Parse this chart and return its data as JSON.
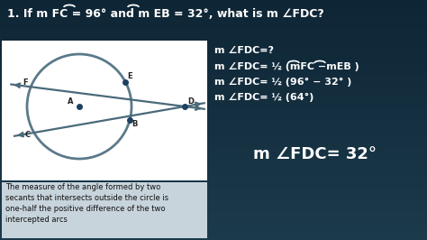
{
  "bg_top": "#1b3a4b",
  "bg_bottom": "#0e2535",
  "white_panel": "#ffffff",
  "grey_panel": "#c8d4dc",
  "circle_color": "#5a7a8a",
  "line_color": "#4a6a7a",
  "dot_color": "#1e4060",
  "text_white": "#ffffff",
  "text_dark": "#111111",
  "title": "1. If m FC = 96° and m EB = 32°, what is m ∠FDC?",
  "step_lines": [
    "m ∠FDC=?",
    "m ∠FDC= ½ (mFC −mEB )",
    "m ∠FDC= ½ (96° − 32° )",
    "m ∠FDC= ½ (64°)"
  ],
  "answer": "m ∠FDC= 32°",
  "bottom_text": "The measure of the angle formed by two\nsecants that intersects outside the circle is\none-half the positive difference of the two\nintercepted arcs"
}
